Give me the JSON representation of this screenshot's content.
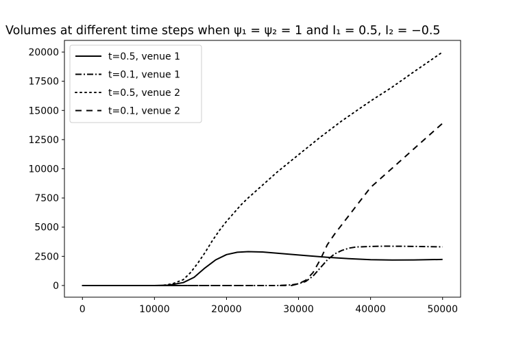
{
  "chart_data": {
    "type": "line",
    "title": "Volumes at different time steps when ψ₁ = ψ₂ = 1 and I₁ = 0.5, I₂ = −0.5",
    "xlabel": "",
    "ylabel": "",
    "xlim": [
      -2500,
      52500
    ],
    "ylim": [
      -1000,
      21000
    ],
    "xticks": [
      0,
      10000,
      20000,
      30000,
      40000,
      50000
    ],
    "yticks": [
      0,
      2500,
      5000,
      7500,
      10000,
      12500,
      15000,
      17500,
      20000
    ],
    "grid": false,
    "legend_position": "top-left",
    "series": [
      {
        "name": "t=0.5, venue 1",
        "style": "solid",
        "color": "#000000",
        "points": [
          [
            0,
            0
          ],
          [
            10000,
            0
          ],
          [
            12000,
            30
          ],
          [
            14000,
            250
          ],
          [
            15500,
            700
          ],
          [
            17000,
            1500
          ],
          [
            18500,
            2200
          ],
          [
            20000,
            2650
          ],
          [
            21500,
            2850
          ],
          [
            23000,
            2900
          ],
          [
            25000,
            2870
          ],
          [
            28000,
            2720
          ],
          [
            31000,
            2560
          ],
          [
            34000,
            2420
          ],
          [
            37000,
            2300
          ],
          [
            40000,
            2210
          ],
          [
            43000,
            2180
          ],
          [
            46000,
            2190
          ],
          [
            50000,
            2230
          ]
        ]
      },
      {
        "name": "t=0.1, venue 1",
        "style": "dashdot",
        "color": "#000000",
        "points": [
          [
            0,
            0
          ],
          [
            27000,
            0
          ],
          [
            29000,
            50
          ],
          [
            30000,
            150
          ],
          [
            31000,
            350
          ],
          [
            32000,
            800
          ],
          [
            33000,
            1500
          ],
          [
            34000,
            2200
          ],
          [
            35000,
            2700
          ],
          [
            36000,
            3000
          ],
          [
            37000,
            3200
          ],
          [
            38000,
            3300
          ],
          [
            40000,
            3350
          ],
          [
            42000,
            3370
          ],
          [
            45000,
            3360
          ],
          [
            50000,
            3310
          ]
        ]
      },
      {
        "name": "t=0.5, venue 2",
        "style": "dotted",
        "color": "#000000",
        "points": [
          [
            0,
            0
          ],
          [
            11000,
            0
          ],
          [
            12500,
            150
          ],
          [
            14000,
            500
          ],
          [
            15000,
            1100
          ],
          [
            16000,
            1900
          ],
          [
            17000,
            2800
          ],
          [
            18000,
            3800
          ],
          [
            19000,
            4700
          ],
          [
            20000,
            5500
          ],
          [
            21000,
            6200
          ],
          [
            22000,
            6900
          ],
          [
            23000,
            7500
          ],
          [
            25000,
            8600
          ],
          [
            27000,
            9700
          ],
          [
            30000,
            11200
          ],
          [
            33000,
            12700
          ],
          [
            36000,
            14100
          ],
          [
            40000,
            15800
          ],
          [
            43000,
            17000
          ],
          [
            46000,
            18300
          ],
          [
            50000,
            20000
          ]
        ]
      },
      {
        "name": "t=0.1, venue 2",
        "style": "dashed",
        "color": "#000000",
        "points": [
          [
            0,
            0
          ],
          [
            29000,
            0
          ],
          [
            30000,
            150
          ],
          [
            31000,
            450
          ],
          [
            32000,
            1100
          ],
          [
            33000,
            2200
          ],
          [
            34000,
            3500
          ],
          [
            35000,
            4400
          ],
          [
            36000,
            5200
          ],
          [
            37000,
            6000
          ],
          [
            38000,
            6800
          ],
          [
            39000,
            7600
          ],
          [
            40000,
            8400
          ],
          [
            42000,
            9500
          ],
          [
            44000,
            10600
          ],
          [
            46000,
            11700
          ],
          [
            48000,
            12800
          ],
          [
            50000,
            13900
          ]
        ]
      }
    ]
  }
}
